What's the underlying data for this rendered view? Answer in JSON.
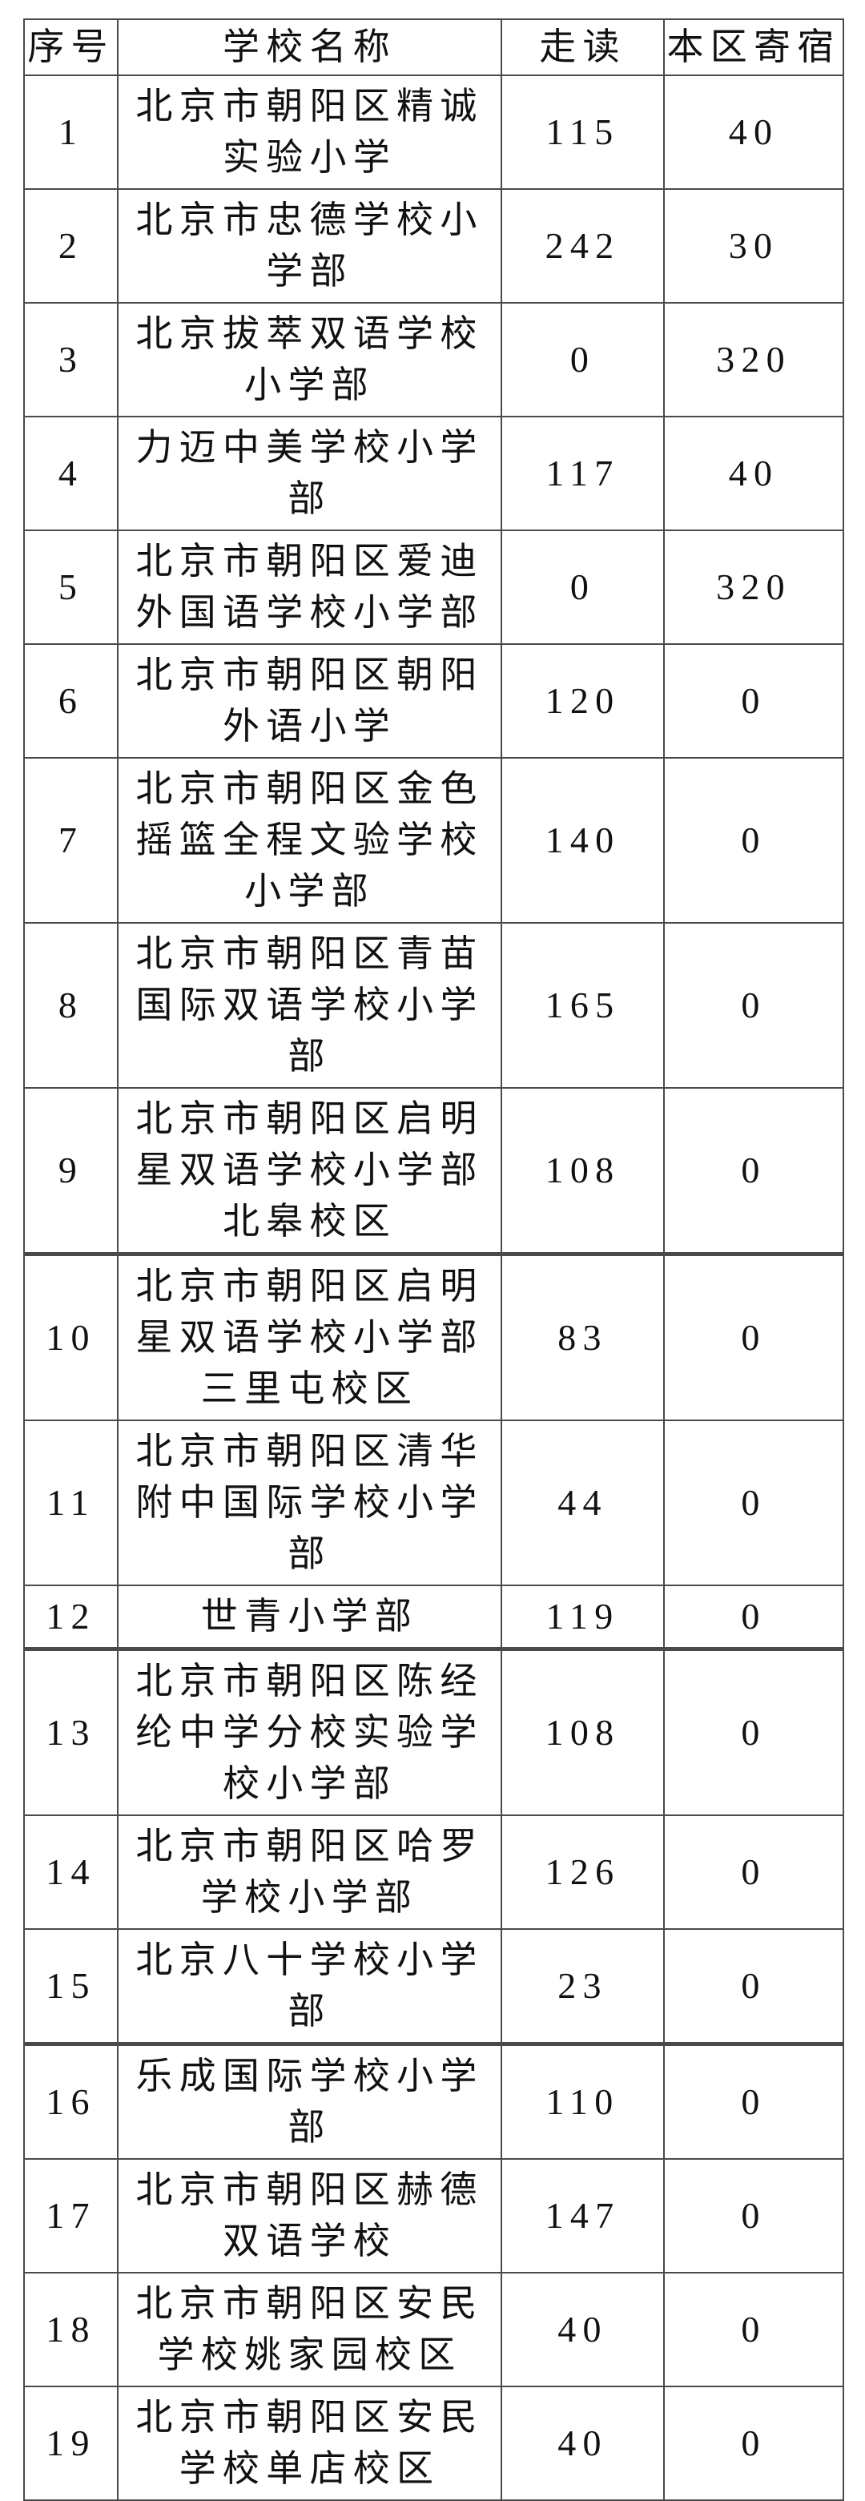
{
  "table": {
    "headers": [
      {
        "label": "序号"
      },
      {
        "label": "学校名称"
      },
      {
        "label": "走读"
      },
      {
        "label": "本区寄宿"
      }
    ],
    "rows": [
      {
        "no": "1",
        "school": "北京市朝阳区精诚实验小学",
        "day": "115",
        "boarding": "40"
      },
      {
        "no": "2",
        "school": "北京市忠德学校小学部",
        "day": "242",
        "boarding": "30"
      },
      {
        "no": "3",
        "school": "北京拔萃双语学校小学部",
        "day": "0",
        "boarding": "320"
      },
      {
        "no": "4",
        "school": "力迈中美学校小学部",
        "day": "117",
        "boarding": "40"
      },
      {
        "no": "5",
        "school": "北京市朝阳区爱迪外国语学校小学部",
        "day": "0",
        "boarding": "320"
      },
      {
        "no": "6",
        "school": "北京市朝阳区朝阳外语小学",
        "day": "120",
        "boarding": "0"
      },
      {
        "no": "7",
        "school": "北京市朝阳区金色摇篮全程文验学校小学部",
        "day": "140",
        "boarding": "0"
      },
      {
        "no": "8",
        "school": "北京市朝阳区青苗国际双语学校小学部",
        "day": "165",
        "boarding": "0"
      },
      {
        "no": "9",
        "school": "北京市朝阳区启明星双语学校小学部北皋校区",
        "day": "108",
        "boarding": "0"
      },
      {
        "no": "10",
        "school": "北京市朝阳区启明星双语学校小学部三里屯校区",
        "day": "83",
        "boarding": "0"
      },
      {
        "no": "11",
        "school": "北京市朝阳区清华附中国际学校小学部",
        "day": "44",
        "boarding": "0"
      },
      {
        "no": "12",
        "school": "世青小学部",
        "day": "119",
        "boarding": "0"
      },
      {
        "no": "13",
        "school": "北京市朝阳区陈经纶中学分校实验学校小学部",
        "day": "108",
        "boarding": "0"
      },
      {
        "no": "14",
        "school": "北京市朝阳区哈罗学校小学部",
        "day": "126",
        "boarding": "0"
      },
      {
        "no": "15",
        "school": "北京八十学校小学部",
        "day": "23",
        "boarding": "0"
      },
      {
        "no": "16",
        "school": "乐成国际学校小学部",
        "day": "110",
        "boarding": "0"
      },
      {
        "no": "17",
        "school": "北京市朝阳区赫德双语学校",
        "day": "147",
        "boarding": "0"
      },
      {
        "no": "18",
        "school": "北京市朝阳区安民学校姚家园校区",
        "day": "40",
        "boarding": "0"
      },
      {
        "no": "19",
        "school": "北京市朝阳区安民学校单店校区",
        "day": "40",
        "boarding": "0"
      }
    ]
  }
}
